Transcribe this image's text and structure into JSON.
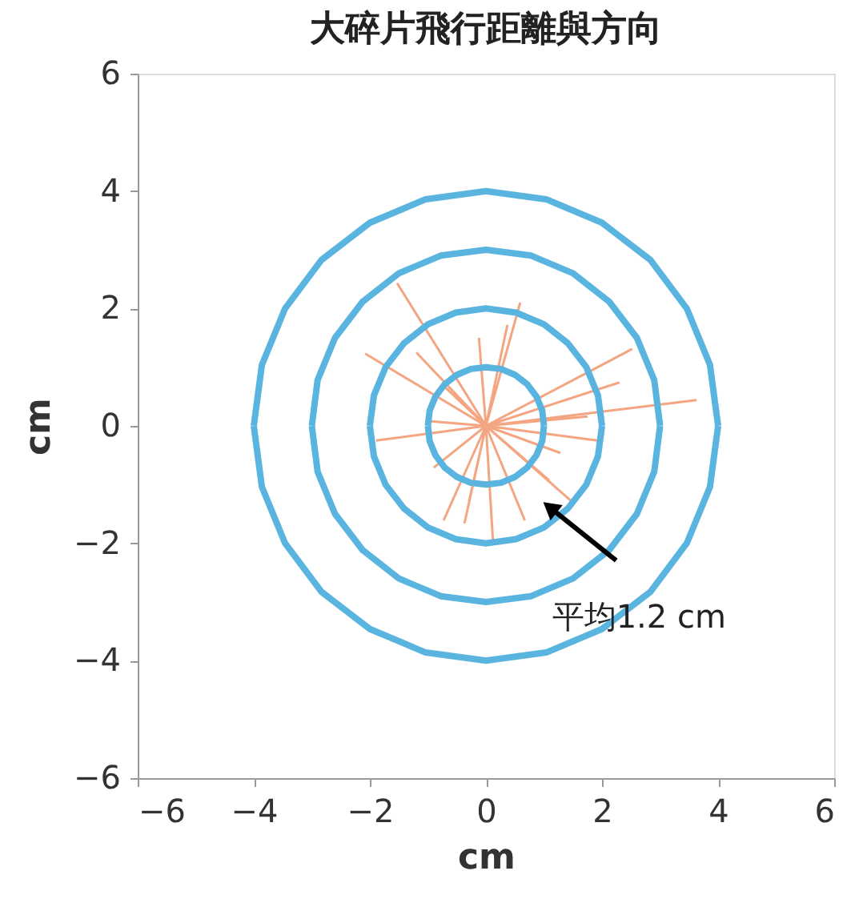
{
  "chart_data": {
    "type": "line",
    "title": "大碎片飛行距離與方向",
    "xlabel": "cm",
    "ylabel": "cm",
    "xlim": [
      -6,
      6
    ],
    "ylim": [
      -6,
      6
    ],
    "xticks": [
      -6,
      -4,
      -2,
      0,
      2,
      4,
      6
    ],
    "yticks": [
      -6,
      -4,
      -2,
      0,
      2,
      4,
      6
    ],
    "grid": false,
    "annotations": [
      {
        "text": "平均1.2 cm",
        "x": 1.14,
        "y": -1.42
      }
    ],
    "series": [
      {
        "color": "#f4a582",
        "x": [
          0,
          -1.53,
          null,
          0,
          0.59,
          null,
          0,
          -0.12,
          null,
          0,
          -2.08,
          null,
          0,
          -1.2,
          null,
          0,
          2.52,
          null,
          0,
          2.3,
          null,
          0,
          3.63,
          null,
          0,
          -1.89,
          null,
          0,
          -0.9,
          null,
          0,
          -0.73,
          null,
          0,
          0.12,
          null,
          0,
          0.67,
          null,
          0,
          1.47,
          null,
          0,
          1.28,
          null,
          0,
          1.92,
          null,
          0,
          -0.37,
          null,
          0,
          0.37,
          null,
          0,
          -0.76,
          null,
          0,
          -0.95,
          null,
          0,
          1.75,
          null,
          0,
          -0.29,
          null,
          0,
          1.09
        ],
        "values": [
          0,
          2.43,
          null,
          0,
          2.1,
          null,
          0,
          1.5,
          null,
          0,
          1.23,
          null,
          0,
          1.25,
          null,
          0,
          1.31,
          null,
          0,
          0.74,
          null,
          0,
          0.44,
          null,
          0,
          -0.25,
          null,
          0,
          -0.71,
          null,
          0,
          -1.61,
          null,
          0,
          -1.94,
          null,
          0,
          -1.61,
          null,
          0,
          -1.28,
          null,
          0,
          -0.46,
          null,
          0,
          -0.25,
          null,
          0,
          -1.66,
          null,
          0,
          1.72,
          null,
          0,
          0.71,
          null,
          0,
          0.08,
          null,
          0,
          0.16,
          null,
          0,
          -1.28,
          null,
          0,
          -0.93
        ]
      },
      {
        "color": "#5ab4e0",
        "x": [
          1,
          0.97,
          0.87,
          0.71,
          0.5,
          0.26,
          0,
          -0.26,
          -0.5,
          -0.71,
          -0.87,
          -0.97,
          -1,
          null,
          -1,
          -0.97,
          -0.87,
          -0.71,
          -0.5,
          -0.26,
          0,
          0.26,
          0.5,
          0.71,
          0.87,
          0.97,
          1
        ],
        "values": [
          0,
          0.26,
          0.5,
          0.71,
          0.87,
          0.97,
          1,
          0.97,
          0.87,
          0.71,
          0.5,
          0.26,
          0,
          null,
          0,
          -0.26,
          -0.5,
          -0.71,
          -0.87,
          -0.97,
          -1,
          -0.97,
          -0.87,
          -0.71,
          -0.5,
          -0.26,
          0
        ]
      },
      {
        "color": "#5ab4e0",
        "x": [
          2,
          1.93,
          1.73,
          1.41,
          1,
          0.52,
          0,
          -0.52,
          -1,
          -1.41,
          -1.73,
          -1.93,
          -2,
          null,
          -2,
          -1.93,
          -1.73,
          -1.41,
          -1,
          -0.52,
          0,
          0.52,
          1,
          1.41,
          1.73,
          1.93,
          2
        ],
        "values": [
          0,
          0.52,
          1,
          1.41,
          1.73,
          1.93,
          2,
          1.93,
          1.73,
          1.41,
          1,
          0.52,
          0,
          null,
          0,
          -0.52,
          -1,
          -1.41,
          -1.73,
          -1.93,
          -2,
          -1.93,
          -1.73,
          -1.41,
          -1,
          -0.52,
          0
        ]
      },
      {
        "color": "#5ab4e0",
        "x": [
          3,
          2.9,
          2.6,
          2.12,
          1.5,
          0.78,
          0,
          -0.78,
          -1.5,
          -2.12,
          -2.6,
          -2.9,
          -3,
          null,
          -3,
          -2.9,
          -2.6,
          -2.12,
          -1.5,
          -0.78,
          0,
          0.78,
          1.5,
          2.12,
          2.6,
          2.9,
          3
        ],
        "values": [
          0,
          0.78,
          1.5,
          2.12,
          2.6,
          2.9,
          3,
          2.9,
          2.6,
          2.12,
          1.5,
          0.78,
          0,
          null,
          0,
          -0.78,
          -1.5,
          -2.12,
          -2.6,
          -2.9,
          -3,
          -2.9,
          -2.6,
          -2.12,
          -1.5,
          -0.78,
          0
        ]
      },
      {
        "color": "#5ab4e0",
        "x": [
          4,
          3.86,
          3.46,
          2.83,
          2,
          1.04,
          0,
          -1.04,
          -2,
          -2.83,
          -3.46,
          -3.86,
          -4,
          null,
          -4,
          -3.86,
          -3.46,
          -2.83,
          -2,
          -1.04,
          0,
          1.04,
          2,
          2.83,
          3.46,
          3.86,
          4
        ],
        "values": [
          0,
          1.04,
          2,
          2.83,
          3.46,
          3.86,
          4,
          3.86,
          3.46,
          2.83,
          2,
          1.04,
          0,
          null,
          0,
          -1.04,
          -2,
          -2.83,
          -3.46,
          -3.86,
          -4,
          -3.86,
          -3.46,
          -2.83,
          -2,
          -1.04,
          0
        ]
      }
    ]
  }
}
